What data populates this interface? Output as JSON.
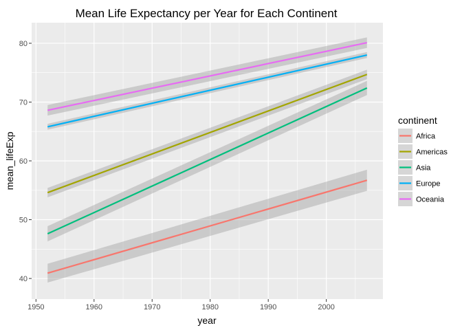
{
  "chart_data": {
    "type": "line",
    "title": "Mean Life Expectancy per Year for Each Continent",
    "xlabel": "year",
    "ylabel": "mean_lifeExp",
    "xlim": [
      1952,
      2007
    ],
    "ylim": [
      36.5,
      83.5
    ],
    "x_ticks": [
      1950,
      1960,
      1970,
      1980,
      1990,
      2000
    ],
    "y_ticks": [
      40,
      50,
      60,
      70,
      80
    ],
    "grid": true,
    "legend": {
      "title": "continent",
      "position": "right"
    },
    "series": [
      {
        "name": "Africa",
        "color": "#F8766D",
        "x": [
          1952,
          2007
        ],
        "y": [
          40.9,
          56.7
        ],
        "band": [
          1.6,
          1.8
        ]
      },
      {
        "name": "Americas",
        "color": "#A3A500",
        "x": [
          1952,
          2007
        ],
        "y": [
          54.6,
          74.7
        ],
        "band": [
          0.8,
          0.8
        ]
      },
      {
        "name": "Asia",
        "color": "#00BF7D",
        "x": [
          1952,
          2007
        ],
        "y": [
          47.6,
          72.4
        ],
        "band": [
          1.3,
          1.2
        ]
      },
      {
        "name": "Europe",
        "color": "#00B0F6",
        "x": [
          1952,
          2007
        ],
        "y": [
          65.8,
          78.0
        ],
        "band": [
          0.5,
          0.5
        ]
      },
      {
        "name": "Oceania",
        "color": "#E76BF3",
        "x": [
          1952,
          2007
        ],
        "y": [
          68.6,
          80.1
        ],
        "band": [
          0.9,
          0.9
        ]
      }
    ]
  }
}
